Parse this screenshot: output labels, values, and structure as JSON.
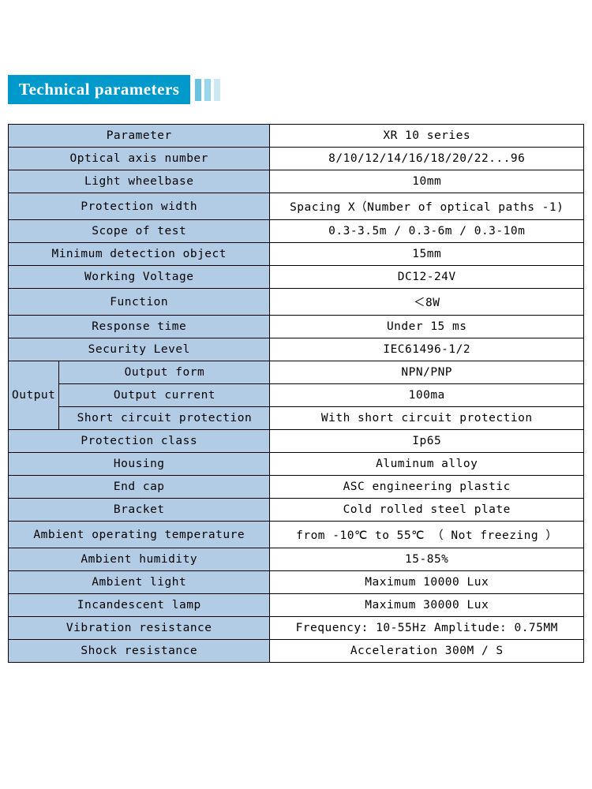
{
  "header": {
    "title": "Technical parameters"
  },
  "table": {
    "header_bg": "#b3cce6",
    "value_bg": "#ffffff",
    "border_color": "#000000",
    "rows": [
      {
        "param": "Parameter",
        "value": "XR 10 series"
      },
      {
        "param": "Optical axis number",
        "value": "8/10/12/14/16/18/20/22...96"
      },
      {
        "param": "Light wheelbase",
        "value": "10mm"
      },
      {
        "param": "Protection width",
        "value": "Spacing X（Number of optical paths -1)"
      },
      {
        "param": "Scope of test",
        "value": "0.3-3.5m / 0.3-6m / 0.3-10m"
      },
      {
        "param": "Minimum detection object",
        "value": "15mm"
      },
      {
        "param": "Working Voltage",
        "value": "DC12-24V"
      },
      {
        "param": "Function",
        "value": "＜8W"
      },
      {
        "param": "Response time",
        "value": "Under 15 ms"
      },
      {
        "param": "Security Level",
        "value": "IEC61496-1/2"
      }
    ],
    "output_group": {
      "label": "Output",
      "rows": [
        {
          "param": "Output form",
          "value": "NPN/PNP"
        },
        {
          "param": "Output current",
          "value": "100ma"
        },
        {
          "param": "Short circuit protection",
          "value": "With short circuit protection"
        }
      ]
    },
    "rows_after": [
      {
        "param": "Protection class",
        "value": "Ip65"
      },
      {
        "param": "Housing",
        "value": "Aluminum alloy"
      },
      {
        "param": "End cap",
        "value": "ASC engineering plastic"
      },
      {
        "param": "Bracket",
        "value": "Cold rolled steel plate"
      },
      {
        "param": "Ambient operating temperature",
        "value": "from -10℃ to 55℃ （ Not freezing ）"
      },
      {
        "param": "Ambient humidity",
        "value": "15-85%"
      },
      {
        "param": "Ambient light",
        "value": "Maximum 10000 Lux"
      },
      {
        "param": "Incandescent lamp",
        "value": "Maximum 30000 Lux"
      },
      {
        "param": "Vibration resistance",
        "value": "Frequency: 10-55Hz   Amplitude: 0.75MM"
      },
      {
        "param": "Shock resistance",
        "value": "Acceleration 300M / S"
      }
    ]
  }
}
